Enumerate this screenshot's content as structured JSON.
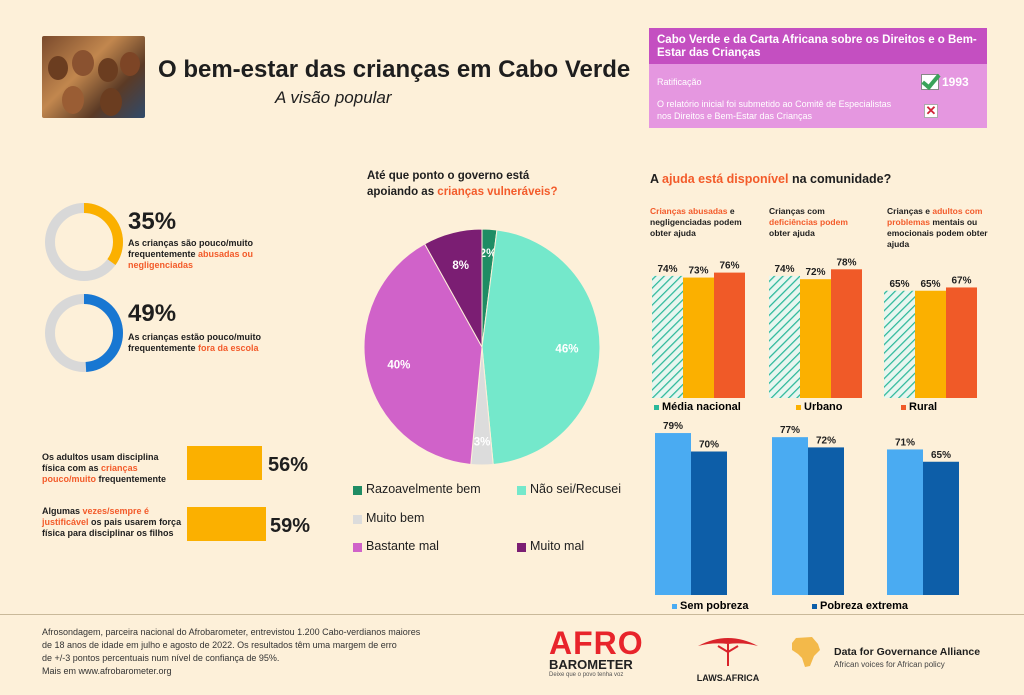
{
  "header": {
    "title": "O bem-estar das crianças em Cabo Verde",
    "subtitle": "A visão popular"
  },
  "charter": {
    "heading": "Cabo Verde e da Carta Africana sobre os Direitos e o Bem-Estar das Crianças",
    "ratification_label": "Ratificação",
    "ratification_year": "1993",
    "report_label": "O relatório inicial foi submetido ao Comitê de Especialistas nos Direitos e Bem-Estar das Crianças",
    "report_mark": "✕"
  },
  "rings": [
    {
      "pct_label": "35%",
      "value": 35,
      "color": "#fbb000",
      "text_pre": "As crianças são pouco/muito frequentemente ",
      "text_hl": "abusadas ou negligenciadas"
    },
    {
      "pct_label": "49%",
      "value": 49,
      "color": "#1877d2",
      "text_pre": "As crianças estão pouco/muito frequentemente ",
      "text_hl": "fora da escola"
    }
  ],
  "discipline": [
    {
      "pct_label": "56%",
      "value": 56,
      "text_pre": "Os adultos usam disciplina física com as ",
      "text_hl": "crianças pouco/muito",
      "text_post": " frequentemente"
    },
    {
      "pct_label": "59%",
      "value": 59,
      "text_pre": "Algumas ",
      "text_hl": "vezes/sempre é justificável",
      "text_post": " os pais usarem força física para disciplinar os filhos"
    }
  ],
  "pie_question": {
    "line1": "Até que ponto o governo está",
    "line2_pre": "apoiando as ",
    "line2_hl": "crianças vulneráveis?"
  },
  "help_title": {
    "pre": "A ",
    "hl": "ajuda está disponível",
    "post": " na comunidade?"
  },
  "help_groups": [
    {
      "hl": "Crianças abusadas",
      "post": " e negligenciadas podem obter ajuda",
      "pre": ""
    },
    {
      "pre": "Crianças com ",
      "hl": "deficiências podem",
      "post": " obter ajuda"
    },
    {
      "pre": "Crianças e ",
      "hl": "adultos com problemas",
      "post": " mentais ou emocionais podem obter ajuda"
    }
  ],
  "chart_data": [
    {
      "type": "pie",
      "title": "Até que ponto o governo está apoiando as crianças vulneráveis?",
      "categories": [
        "Razoavelmente bem",
        "Não sei/Recusei",
        "Muito bem",
        "Bastante mal",
        "Muito mal"
      ],
      "values": [
        2,
        46,
        3,
        40,
        8
      ],
      "labels": [
        "2%",
        "46%",
        "3%",
        "40%",
        "8%"
      ],
      "colors": [
        "#1f8c64",
        "#74e8cb",
        "#dcdcdc",
        "#d062c9",
        "#7b1e73"
      ],
      "legend": [
        "Razoavelmente bem",
        "Não sei/Recusei",
        "Muito bem",
        "Bastante mal",
        "Muito mal"
      ]
    },
    {
      "type": "bar",
      "title": "A ajuda está disponível na comunidade?",
      "categories": [
        "Crianças abusadas e negligenciadas podem obter ajuda",
        "Crianças com deficiências podem obter ajuda",
        "Crianças e adultos com problemas mentais ou emocionais podem obter ajuda"
      ],
      "series": [
        {
          "name": "Média nacional",
          "values": [
            74,
            74,
            65
          ],
          "labels": [
            "74%",
            "74%",
            "65%"
          ],
          "color": "#2bb89a"
        },
        {
          "name": "Urbano",
          "values": [
            73,
            72,
            65
          ],
          "labels": [
            "73%",
            "72%",
            "65%"
          ],
          "color": "#fbb000"
        },
        {
          "name": "Rural",
          "values": [
            76,
            78,
            67
          ],
          "labels": [
            "76%",
            "78%",
            "67%"
          ],
          "color": "#f05a28"
        }
      ]
    },
    {
      "type": "bar",
      "categories": [
        "Crianças abusadas e negligenciadas podem obter ajuda",
        "Crianças com deficiências podem obter ajuda",
        "Crianças e adultos com problemas mentais ou emocionais podem obter ajuda"
      ],
      "series": [
        {
          "name": "Sem pobreza",
          "values": [
            79,
            77,
            71
          ],
          "labels": [
            "79%",
            "77%",
            "71%"
          ],
          "color": "#4aabf2"
        },
        {
          "name": "Pobreza extrema",
          "values": [
            70,
            72,
            65
          ],
          "labels": [
            "70%",
            "72%",
            "65%"
          ],
          "color": "#0d5ea8"
        }
      ]
    }
  ],
  "footer": {
    "line1": "Afrosondagem, parceira nacional do Afrobarometer, entrevistou 1.200 Cabo-verdianos maiores",
    "line2": "de 18 anos de idade em julho e agosto de 2022. Os resultados têm uma margem de erro",
    "line3": "de +/-3 pontos percentuais num nível de confiança de 95%.",
    "line4": "Mais em www.afrobarometer.org"
  },
  "logos": {
    "afro_top": "AFRO",
    "afro_bottom": "BAROMETER",
    "afro_tagline": "Deixe que o povo tenha voz",
    "laws": "LAWS.AFRICA",
    "dga_title": "Data for Governance Alliance",
    "dga_sub": "African voices for African policy"
  }
}
